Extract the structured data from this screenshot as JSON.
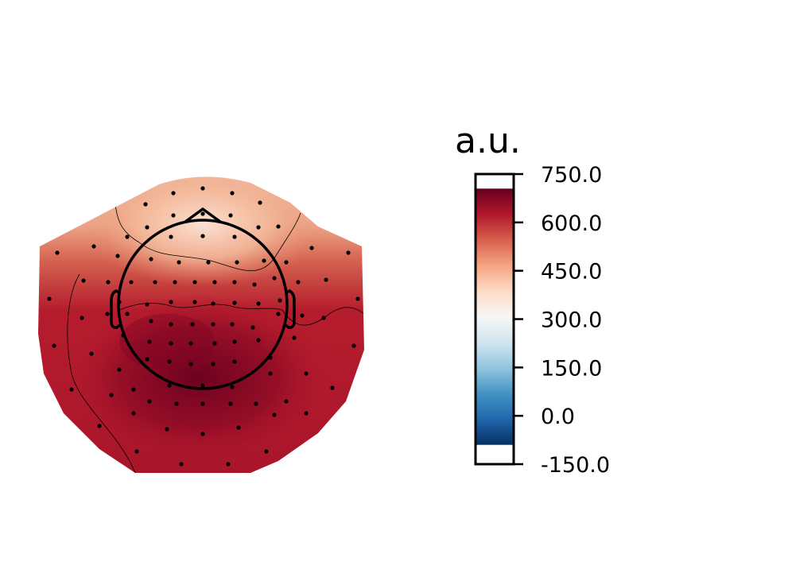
{
  "chart_data": {
    "type": "heatmap",
    "subtype": "topomap",
    "title": "",
    "colorbar": {
      "title": "a.u.",
      "min": -150,
      "max": 750,
      "data_min": -90,
      "data_max": 705,
      "colormap": "RdBu_r",
      "ticks": [
        750,
        600,
        450,
        300,
        150,
        0,
        -150
      ],
      "tick_labels": [
        "750.0",
        "600.0",
        "450.0",
        "300.0",
        "150.0",
        "0.0",
        "-150.0"
      ],
      "stops": [
        "#053061",
        "#2166ac",
        "#4393c3",
        "#92c5de",
        "#d1e5f0",
        "#f7f7f7",
        "#fddbc7",
        "#f4a582",
        "#d6604d",
        "#b2182b",
        "#67001f"
      ]
    },
    "contour_levels": [
      600,
      450
    ],
    "value_range_shown": {
      "frontal": 400,
      "central": 620,
      "parieto_occipital": 700
    },
    "sensor_count": 102
  }
}
